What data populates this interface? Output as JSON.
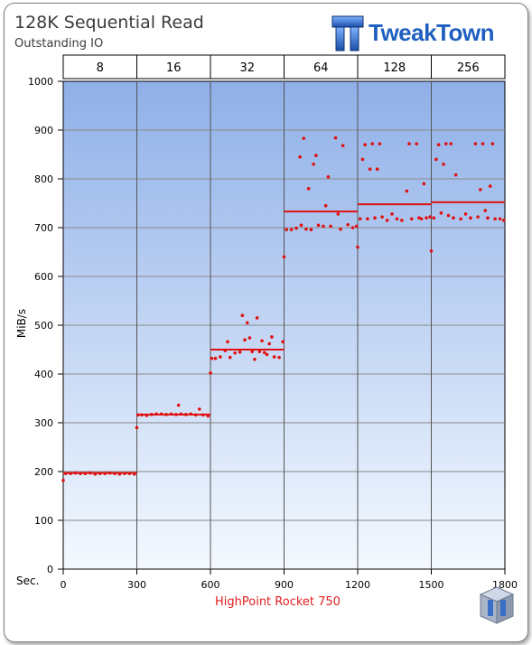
{
  "header": {
    "title": "128K Sequential  Read",
    "subtitle": "Outstanding IO",
    "logo_text": "TweakTown"
  },
  "icons": {
    "logo": "tweaktown-tt-logo-icon",
    "corner": "tt-cube-icon"
  },
  "colors": {
    "series": "#e01010",
    "grid": "#8a8a8a",
    "plot_top": "#8fb0e8",
    "plot_bottom": "#f4f9ff"
  },
  "chart_data": {
    "type": "scatter",
    "title": "128K Sequential  Read",
    "subtitle": "Outstanding IO",
    "ylabel": "MiB/s",
    "xlabel_prefix": "Sec.",
    "xlim": [
      0,
      1800
    ],
    "ylim": [
      0,
      1000
    ],
    "x_ticks": [
      0,
      300,
      600,
      900,
      1200,
      1500,
      1800
    ],
    "y_ticks": [
      0,
      100,
      200,
      300,
      400,
      500,
      600,
      700,
      800,
      900,
      1000
    ],
    "top_axis_label": "Outstanding IO",
    "top_categories": [
      "8",
      "16",
      "32",
      "64",
      "128",
      "256"
    ],
    "grid": true,
    "series": [
      {
        "name": "HighPoint Rocket 750",
        "points": [
          [
            0,
            182
          ],
          [
            10,
            196
          ],
          [
            30,
            196
          ],
          [
            50,
            197
          ],
          [
            70,
            196
          ],
          [
            90,
            196
          ],
          [
            110,
            197
          ],
          [
            130,
            195
          ],
          [
            150,
            196
          ],
          [
            170,
            196
          ],
          [
            190,
            197
          ],
          [
            210,
            196
          ],
          [
            230,
            195
          ],
          [
            250,
            196
          ],
          [
            270,
            196
          ],
          [
            290,
            195
          ],
          [
            300,
            290
          ],
          [
            305,
            316
          ],
          [
            320,
            316
          ],
          [
            340,
            315
          ],
          [
            360,
            317
          ],
          [
            380,
            318
          ],
          [
            400,
            318
          ],
          [
            420,
            317
          ],
          [
            440,
            318
          ],
          [
            460,
            317
          ],
          [
            470,
            336
          ],
          [
            480,
            318
          ],
          [
            500,
            317
          ],
          [
            520,
            318
          ],
          [
            540,
            316
          ],
          [
            555,
            328
          ],
          [
            570,
            316
          ],
          [
            590,
            314
          ],
          [
            600,
            402
          ],
          [
            605,
            432
          ],
          [
            620,
            432
          ],
          [
            640,
            435
          ],
          [
            660,
            448
          ],
          [
            670,
            466
          ],
          [
            680,
            434
          ],
          [
            700,
            443
          ],
          [
            720,
            445
          ],
          [
            730,
            520
          ],
          [
            740,
            470
          ],
          [
            750,
            505
          ],
          [
            760,
            474
          ],
          [
            770,
            446
          ],
          [
            780,
            430
          ],
          [
            790,
            515
          ],
          [
            800,
            446
          ],
          [
            810,
            468
          ],
          [
            820,
            444
          ],
          [
            830,
            440
          ],
          [
            840,
            462
          ],
          [
            850,
            476
          ],
          [
            860,
            435
          ],
          [
            880,
            434
          ],
          [
            895,
            466
          ],
          [
            900,
            640
          ],
          [
            910,
            696
          ],
          [
            930,
            696
          ],
          [
            950,
            699
          ],
          [
            965,
            845
          ],
          [
            970,
            705
          ],
          [
            980,
            883
          ],
          [
            990,
            697
          ],
          [
            1000,
            780
          ],
          [
            1010,
            696
          ],
          [
            1020,
            830
          ],
          [
            1030,
            848
          ],
          [
            1040,
            705
          ],
          [
            1060,
            703
          ],
          [
            1070,
            745
          ],
          [
            1080,
            804
          ],
          [
            1090,
            703
          ],
          [
            1110,
            884
          ],
          [
            1120,
            728
          ],
          [
            1130,
            697
          ],
          [
            1140,
            868
          ],
          [
            1160,
            706
          ],
          [
            1180,
            700
          ],
          [
            1195,
            703
          ],
          [
            1200,
            660
          ],
          [
            1210,
            718
          ],
          [
            1220,
            840
          ],
          [
            1230,
            870
          ],
          [
            1240,
            718
          ],
          [
            1250,
            820
          ],
          [
            1260,
            872
          ],
          [
            1270,
            720
          ],
          [
            1280,
            820
          ],
          [
            1290,
            872
          ],
          [
            1300,
            722
          ],
          [
            1320,
            715
          ],
          [
            1340,
            728
          ],
          [
            1360,
            718
          ],
          [
            1380,
            715
          ],
          [
            1400,
            775
          ],
          [
            1410,
            872
          ],
          [
            1420,
            718
          ],
          [
            1440,
            872
          ],
          [
            1450,
            720
          ],
          [
            1460,
            718
          ],
          [
            1470,
            790
          ],
          [
            1480,
            720
          ],
          [
            1495,
            722
          ],
          [
            1500,
            652
          ],
          [
            1510,
            720
          ],
          [
            1520,
            840
          ],
          [
            1530,
            870
          ],
          [
            1540,
            730
          ],
          [
            1550,
            830
          ],
          [
            1560,
            872
          ],
          [
            1570,
            725
          ],
          [
            1580,
            872
          ],
          [
            1590,
            720
          ],
          [
            1600,
            808
          ],
          [
            1620,
            718
          ],
          [
            1640,
            728
          ],
          [
            1660,
            720
          ],
          [
            1680,
            872
          ],
          [
            1690,
            722
          ],
          [
            1700,
            778
          ],
          [
            1710,
            872
          ],
          [
            1720,
            735
          ],
          [
            1730,
            720
          ],
          [
            1740,
            785
          ],
          [
            1750,
            872
          ],
          [
            1760,
            718
          ],
          [
            1780,
            718
          ],
          [
            1795,
            715
          ]
        ],
        "averages": [
          {
            "x0": 0,
            "x1": 300,
            "y": 197
          },
          {
            "x0": 300,
            "x1": 600,
            "y": 317
          },
          {
            "x0": 600,
            "x1": 900,
            "y": 450
          },
          {
            "x0": 900,
            "x1": 1200,
            "y": 733
          },
          {
            "x0": 1200,
            "x1": 1500,
            "y": 748
          },
          {
            "x0": 1500,
            "x1": 1800,
            "y": 752
          }
        ]
      }
    ]
  }
}
